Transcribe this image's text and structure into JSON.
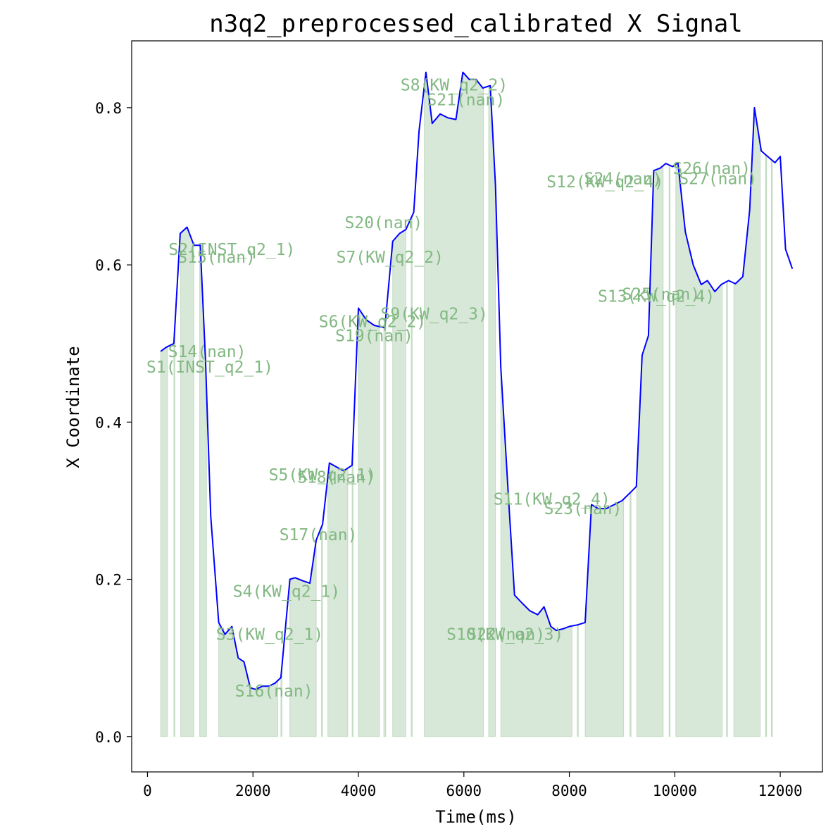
{
  "chart_data": {
    "type": "line",
    "title": "n3q2_preprocessed_calibrated X Signal",
    "xlabel": "Time(ms)",
    "ylabel": "X Coordinate",
    "xlim": [
      -300,
      12800
    ],
    "ylim": [
      -0.045,
      0.885
    ],
    "xticks": [
      0,
      2000,
      4000,
      6000,
      8000,
      10000,
      12000
    ],
    "xtick_labels": [
      "0",
      "2000",
      "4000",
      "6000",
      "8000",
      "10000",
      "12000"
    ],
    "yticks": [
      0.0,
      0.2,
      0.4,
      0.6,
      0.8
    ],
    "ytick_labels": [
      "0.0",
      "0.2",
      "0.4",
      "0.6",
      "0.8"
    ],
    "grid": false,
    "series": [
      {
        "color": "#0000ff",
        "x": [
          250,
          350,
          500,
          620,
          750,
          880,
          1000,
          1100,
          1200,
          1350,
          1470,
          1600,
          1720,
          1830,
          1950,
          2050,
          2180,
          2300,
          2420,
          2530,
          2700,
          2800,
          2950,
          3080,
          3200,
          3320,
          3450,
          3580,
          3720,
          3880,
          4000,
          4150,
          4300,
          4500,
          4650,
          4780,
          4900,
          5050,
          5150,
          5280,
          5400,
          5550,
          5700,
          5850,
          5980,
          6100,
          6230,
          6360,
          6500,
          6600,
          6700,
          6850,
          6960,
          7100,
          7250,
          7400,
          7520,
          7650,
          7750,
          7880,
          8000,
          8150,
          8300,
          8420,
          8550,
          8700,
          8850,
          9000,
          9150,
          9270,
          9380,
          9500,
          9600,
          9720,
          9830,
          9960,
          10060,
          10200,
          10350,
          10500,
          10620,
          10760,
          10880,
          11020,
          11150,
          11290,
          11420,
          11510,
          11640,
          11760,
          11900,
          12000,
          12100,
          12230
        ],
        "y": [
          0.49,
          0.495,
          0.5,
          0.64,
          0.648,
          0.625,
          0.625,
          0.48,
          0.28,
          0.145,
          0.13,
          0.14,
          0.1,
          0.095,
          0.062,
          0.06,
          0.064,
          0.064,
          0.068,
          0.075,
          0.2,
          0.202,
          0.198,
          0.195,
          0.25,
          0.27,
          0.348,
          0.343,
          0.338,
          0.345,
          0.545,
          0.53,
          0.523,
          0.52,
          0.63,
          0.64,
          0.645,
          0.667,
          0.77,
          0.845,
          0.78,
          0.792,
          0.787,
          0.785,
          0.845,
          0.836,
          0.836,
          0.825,
          0.828,
          0.7,
          0.47,
          0.3,
          0.18,
          0.17,
          0.16,
          0.155,
          0.165,
          0.14,
          0.135,
          0.137,
          0.14,
          0.142,
          0.145,
          0.295,
          0.29,
          0.29,
          0.295,
          0.3,
          0.31,
          0.318,
          0.485,
          0.51,
          0.72,
          0.723,
          0.729,
          0.725,
          0.73,
          0.642,
          0.6,
          0.575,
          0.58,
          0.566,
          0.575,
          0.58,
          0.576,
          0.585,
          0.67,
          0.8,
          0.745,
          0.738,
          0.73,
          0.738,
          0.62,
          0.595
        ]
      }
    ],
    "segments": [
      {
        "label": "S1(INST_q2_1)",
        "start": 250,
        "end": 380
      },
      {
        "label": "S14(nan)",
        "start": 500,
        "end": 520
      },
      {
        "label": "S2(INST_q2_1)",
        "start": 630,
        "end": 880
      },
      {
        "label": "S15(nan)",
        "start": 990,
        "end": 1120
      },
      {
        "label": "S3(KW_q2_1)",
        "start": 1350,
        "end": 2470
      },
      {
        "label": "S16(nan)",
        "start": 2530,
        "end": 2550
      },
      {
        "label": "S4(KW_q2_1)",
        "start": 2700,
        "end": 3200
      },
      {
        "label": "S17(nan)",
        "start": 3300,
        "end": 3320
      },
      {
        "label": "S5(KW_q2_1)",
        "start": 3420,
        "end": 3800
      },
      {
        "label": "S18(nan)",
        "start": 3880,
        "end": 3900
      },
      {
        "label": "S6(KW_q2_2)",
        "start": 4000,
        "end": 4400
      },
      {
        "label": "S19(nan)",
        "start": 4480,
        "end": 4520
      },
      {
        "label": "S7(KW_q2_2)",
        "start": 4650,
        "end": 4900
      },
      {
        "label": "S20(nan)",
        "start": 5000,
        "end": 5020
      },
      {
        "label": "S8(KW_q2_2)",
        "start": 5250,
        "end": 6370
      },
      {
        "label": "S21(nan)",
        "start": 6470,
        "end": 6600
      },
      {
        "label": "S9(KW_q2_3)",
        "start": 6700,
        "end": 8050
      },
      {
        "label": "S22(nan)",
        "start": 8150,
        "end": 8170
      },
      {
        "label": "S10(KW_q2_3)",
        "start": 8300,
        "end": 9030
      },
      {
        "label": "S23(nan)",
        "start": 9150,
        "end": 9170
      },
      {
        "label": "S11(KW_q2_4)",
        "start": 9280,
        "end": 9780
      },
      {
        "label": "S24(nan)",
        "start": 9890,
        "end": 9910
      },
      {
        "label": "S12(KW_q2_4)",
        "start": 10020,
        "end": 10900
      },
      {
        "label": "S25(nan)",
        "start": 10980,
        "end": 11000
      },
      {
        "label": "S13(KW_q2_4)",
        "start": 11120,
        "end": 11620
      },
      {
        "label": "S26(nan)",
        "start": 11720,
        "end": 11740
      },
      {
        "label": "S27(nan)",
        "start": 11830,
        "end": 11850
      }
    ],
    "annotations": [
      {
        "text": "S1(INST_q2_1)",
        "x": -20,
        "y": 0.47
      },
      {
        "text": "S14(nan)",
        "x": 390,
        "y": 0.49
      },
      {
        "text": "S2(INST_q2_1)",
        "x": 400,
        "y": 0.62
      },
      {
        "text": "S15(nan)",
        "x": 570,
        "y": 0.61
      },
      {
        "text": "S3(KW_q2_1)",
        "x": 1300,
        "y": 0.13
      },
      {
        "text": "S16(nan)",
        "x": 1660,
        "y": 0.058
      },
      {
        "text": "S4(KW_q2_1)",
        "x": 1620,
        "y": 0.185
      },
      {
        "text": "S17(nan)",
        "x": 2500,
        "y": 0.257
      },
      {
        "text": "S5(KW_q2_1)",
        "x": 2300,
        "y": 0.333
      },
      {
        "text": "S18(nan)",
        "x": 2840,
        "y": 0.33
      },
      {
        "text": "S6(KW_q2_2)",
        "x": 3250,
        "y": 0.528
      },
      {
        "text": "S19(nan)",
        "x": 3560,
        "y": 0.51
      },
      {
        "text": "S7(KW_q2_2)",
        "x": 3580,
        "y": 0.61
      },
      {
        "text": "S20(nan)",
        "x": 3740,
        "y": 0.654
      },
      {
        "text": "S8(KW_q2_2)",
        "x": 4800,
        "y": 0.829
      },
      {
        "text": "S21(nan)",
        "x": 5300,
        "y": 0.81
      },
      {
        "text": "S9(KW_q2_3)",
        "x": 4420,
        "y": 0.538
      },
      {
        "text": "S22(nan)",
        "x": 6060,
        "y": 0.13
      },
      {
        "text": "S10(KW_q2_3)",
        "x": 5670,
        "y": 0.13
      },
      {
        "text": "S23(nan)",
        "x": 7520,
        "y": 0.29
      },
      {
        "text": "S11(KW_q2_4)",
        "x": 6560,
        "y": 0.302
      },
      {
        "text": "S24(nan)",
        "x": 8280,
        "y": 0.71
      },
      {
        "text": "S12(KW_q2_4)",
        "x": 7570,
        "y": 0.706
      },
      {
        "text": "S25(nan)",
        "x": 9000,
        "y": 0.563
      },
      {
        "text": "S13(KW_q2_4)",
        "x": 8540,
        "y": 0.56
      },
      {
        "text": "S26(nan)",
        "x": 9960,
        "y": 0.723
      },
      {
        "text": "S27(nan)",
        "x": 10080,
        "y": 0.71
      }
    ]
  }
}
